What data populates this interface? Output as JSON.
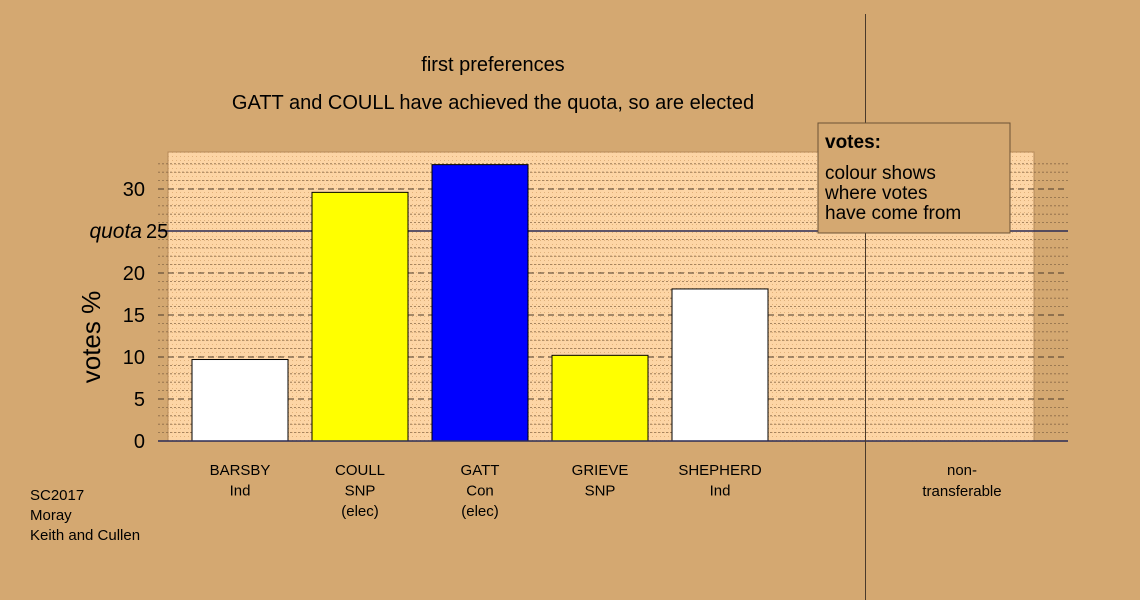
{
  "chart_data": {
    "type": "bar",
    "title": "first preferences",
    "subtitle": "GATT and COULL have achieved the quota, so are elected",
    "ylabel": "votes %",
    "ylim": [
      0,
      34
    ],
    "yticks": [
      0,
      5,
      10,
      15,
      20,
      25,
      30
    ],
    "quota": {
      "label": "quota",
      "value": 25
    },
    "grid": true,
    "categories": [
      {
        "line1": "BARSBY",
        "line2": "Ind",
        "line3": "",
        "value": 9.7,
        "color": "#ffffff"
      },
      {
        "line1": "COULL",
        "line2": "SNP",
        "line3": "(elec)",
        "value": 29.6,
        "color": "#ffff00"
      },
      {
        "line1": "GATT",
        "line2": "Con",
        "line3": "(elec)",
        "value": 32.9,
        "color": "#0000ff"
      },
      {
        "line1": "GRIEVE",
        "line2": "SNP",
        "line3": "",
        "value": 10.2,
        "color": "#ffff00"
      },
      {
        "line1": "SHEPHERD",
        "line2": "Ind",
        "line3": "",
        "value": 18.1,
        "color": "#ffffff"
      }
    ],
    "non_transferable": {
      "line1": "non-",
      "line2": "transferable",
      "value": 0
    },
    "legend": {
      "title": "votes:",
      "lines": [
        "colour shows",
        "where votes",
        "have come from"
      ],
      "placement": "top-right"
    },
    "footer": [
      "SC2017",
      "Moray",
      "Keith and Cullen"
    ]
  },
  "colors": {
    "page_background": "#d4a871",
    "plot_background": "#fdd5a5",
    "legend_background": "#d4a871"
  }
}
